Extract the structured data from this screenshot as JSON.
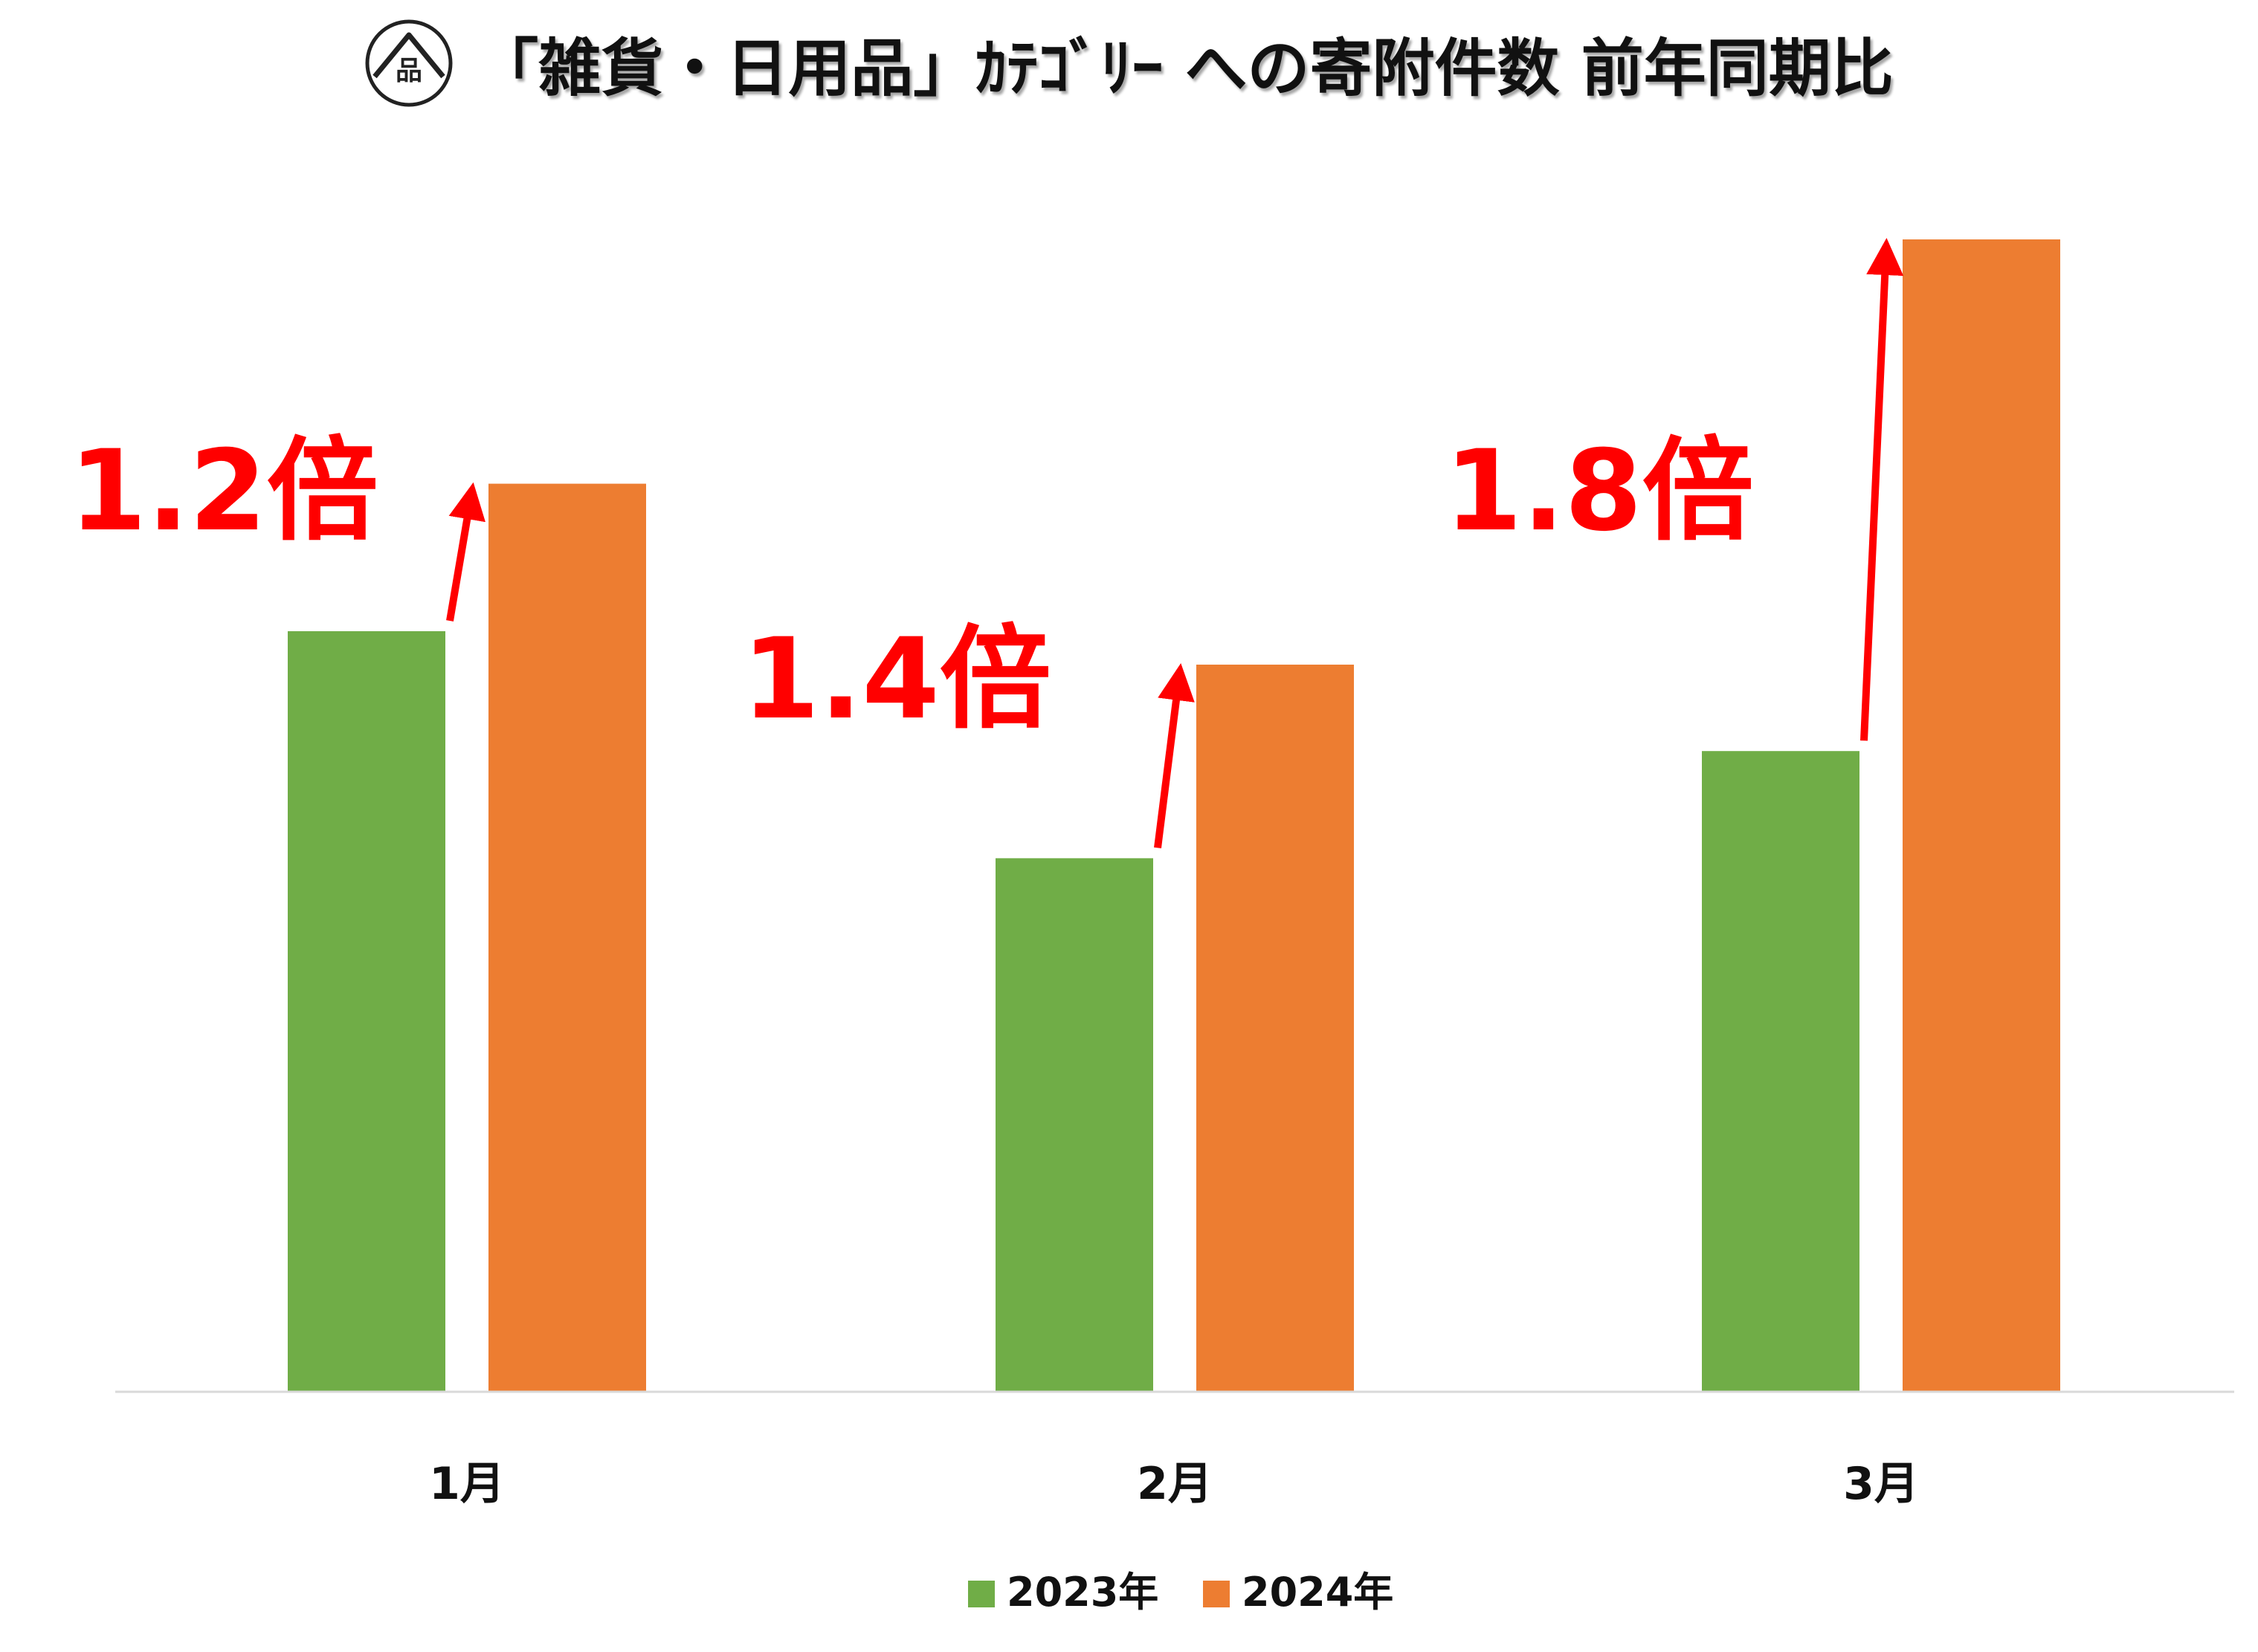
{
  "title": "「雑貨・日用品」ｶﾃｺﾞﾘｰ への寄附件数 前年同期比",
  "logo_icon": "house-shinagawa-logo-icon",
  "logo_text": "品",
  "colors": {
    "series_2023": "#70AD47",
    "series_2024": "#ED7D31",
    "annotation": "#FF0000",
    "axis": "#D9D9D9"
  },
  "chart_data": {
    "type": "bar",
    "title": "「雑貨・日用品」ｶﾃｺﾞﾘｰ への寄附件数 前年同期比",
    "categories": [
      "1月",
      "2月",
      "3月"
    ],
    "series": [
      {
        "name": "2023年",
        "values": [
          66,
          46.3,
          55.6
        ]
      },
      {
        "name": "2024年",
        "values": [
          78.8,
          63.1,
          100
        ]
      }
    ],
    "ylim": [
      0,
      100
    ],
    "grid": false,
    "legend": "bottom",
    "annotations": [
      {
        "category": "1月",
        "text": "1.2倍"
      },
      {
        "category": "2月",
        "text": "1.4倍"
      },
      {
        "category": "3月",
        "text": "1.8倍"
      }
    ]
  }
}
